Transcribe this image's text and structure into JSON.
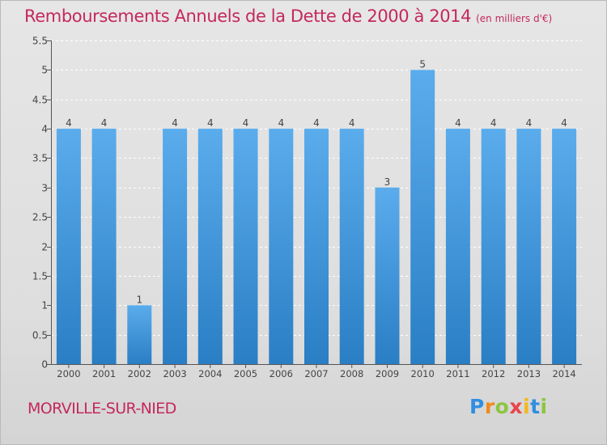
{
  "chart_data": {
    "type": "bar",
    "title": "Remboursements Annuels de la Dette de 2000 à 2014",
    "subtitle": "(en milliers d'€)",
    "xlabel": "",
    "ylabel": "",
    "categories": [
      "2000",
      "2001",
      "2002",
      "2003",
      "2004",
      "2005",
      "2006",
      "2007",
      "2008",
      "2009",
      "2010",
      "2011",
      "2012",
      "2013",
      "2014"
    ],
    "values": [
      4,
      4,
      1,
      4,
      4,
      4,
      4,
      4,
      4,
      3,
      5,
      4,
      4,
      4,
      4
    ],
    "ylim": [
      0,
      5.5
    ],
    "yticks": [
      0,
      0.5,
      1,
      1.5,
      2,
      2.5,
      3,
      3.5,
      4,
      4.5,
      5,
      5.5
    ],
    "ytick_labels": [
      "0",
      "0.5",
      "1",
      "1.5",
      "2",
      "2.5",
      "3",
      "3.5",
      "4",
      "4.5",
      "5",
      "5.5"
    ],
    "grid": true,
    "bar_color": "#3f8fd6",
    "title_color": "#c4285f"
  },
  "footer": {
    "place": "MORVILLE-SUR-NIED"
  },
  "logo": {
    "letters": [
      "P",
      "r",
      "o",
      "x",
      "i",
      "t",
      "i"
    ],
    "colors": [
      "#2f8fe0",
      "#f08a1c",
      "#8cc63f",
      "#e8454a",
      "#f4b71c",
      "#2f8fe0",
      "#8cc63f"
    ]
  }
}
